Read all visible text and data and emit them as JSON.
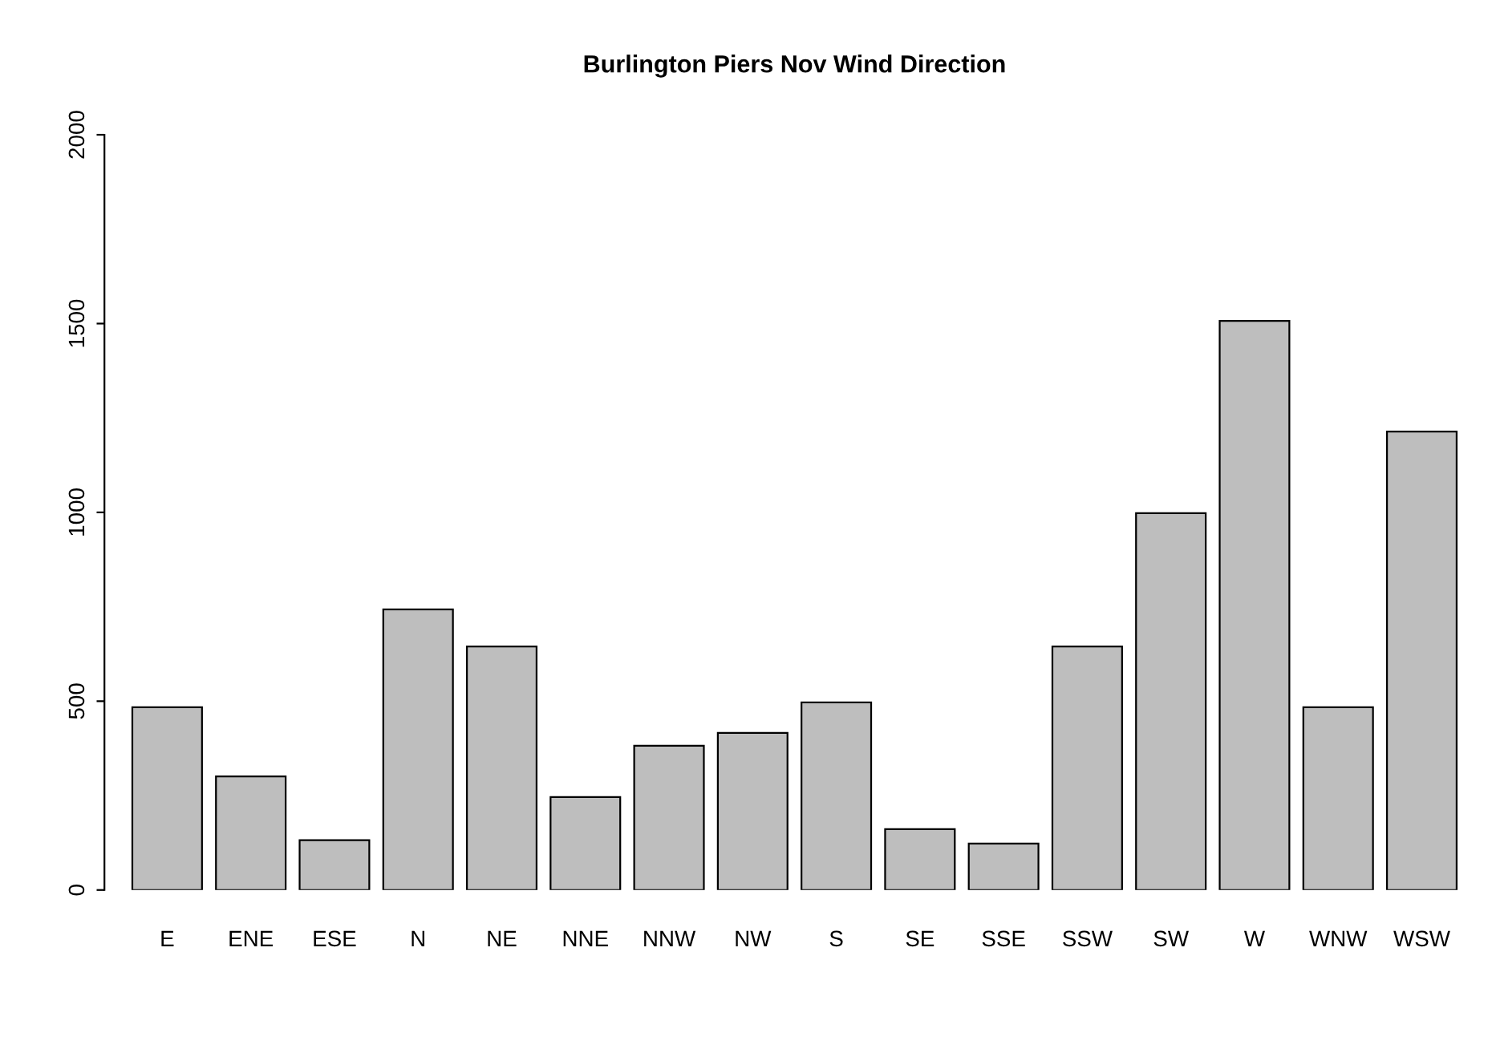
{
  "chart_data": {
    "type": "bar",
    "title": "Burlington Piers Nov Wind Direction",
    "categories": [
      "E",
      "ENE",
      "ESE",
      "N",
      "NE",
      "NNE",
      "NNW",
      "NW",
      "S",
      "SE",
      "SSE",
      "SSW",
      "SW",
      "W",
      "WNW",
      "WSW"
    ],
    "values": [
      484,
      301,
      132,
      743,
      645,
      246,
      382,
      416,
      497,
      161,
      123,
      645,
      998,
      1507,
      484,
      1214
    ],
    "color": "#bebebe",
    "ylim": [
      0,
      2000
    ],
    "yticks": [
      0,
      500,
      1000,
      1500,
      2000
    ],
    "grid": false
  }
}
